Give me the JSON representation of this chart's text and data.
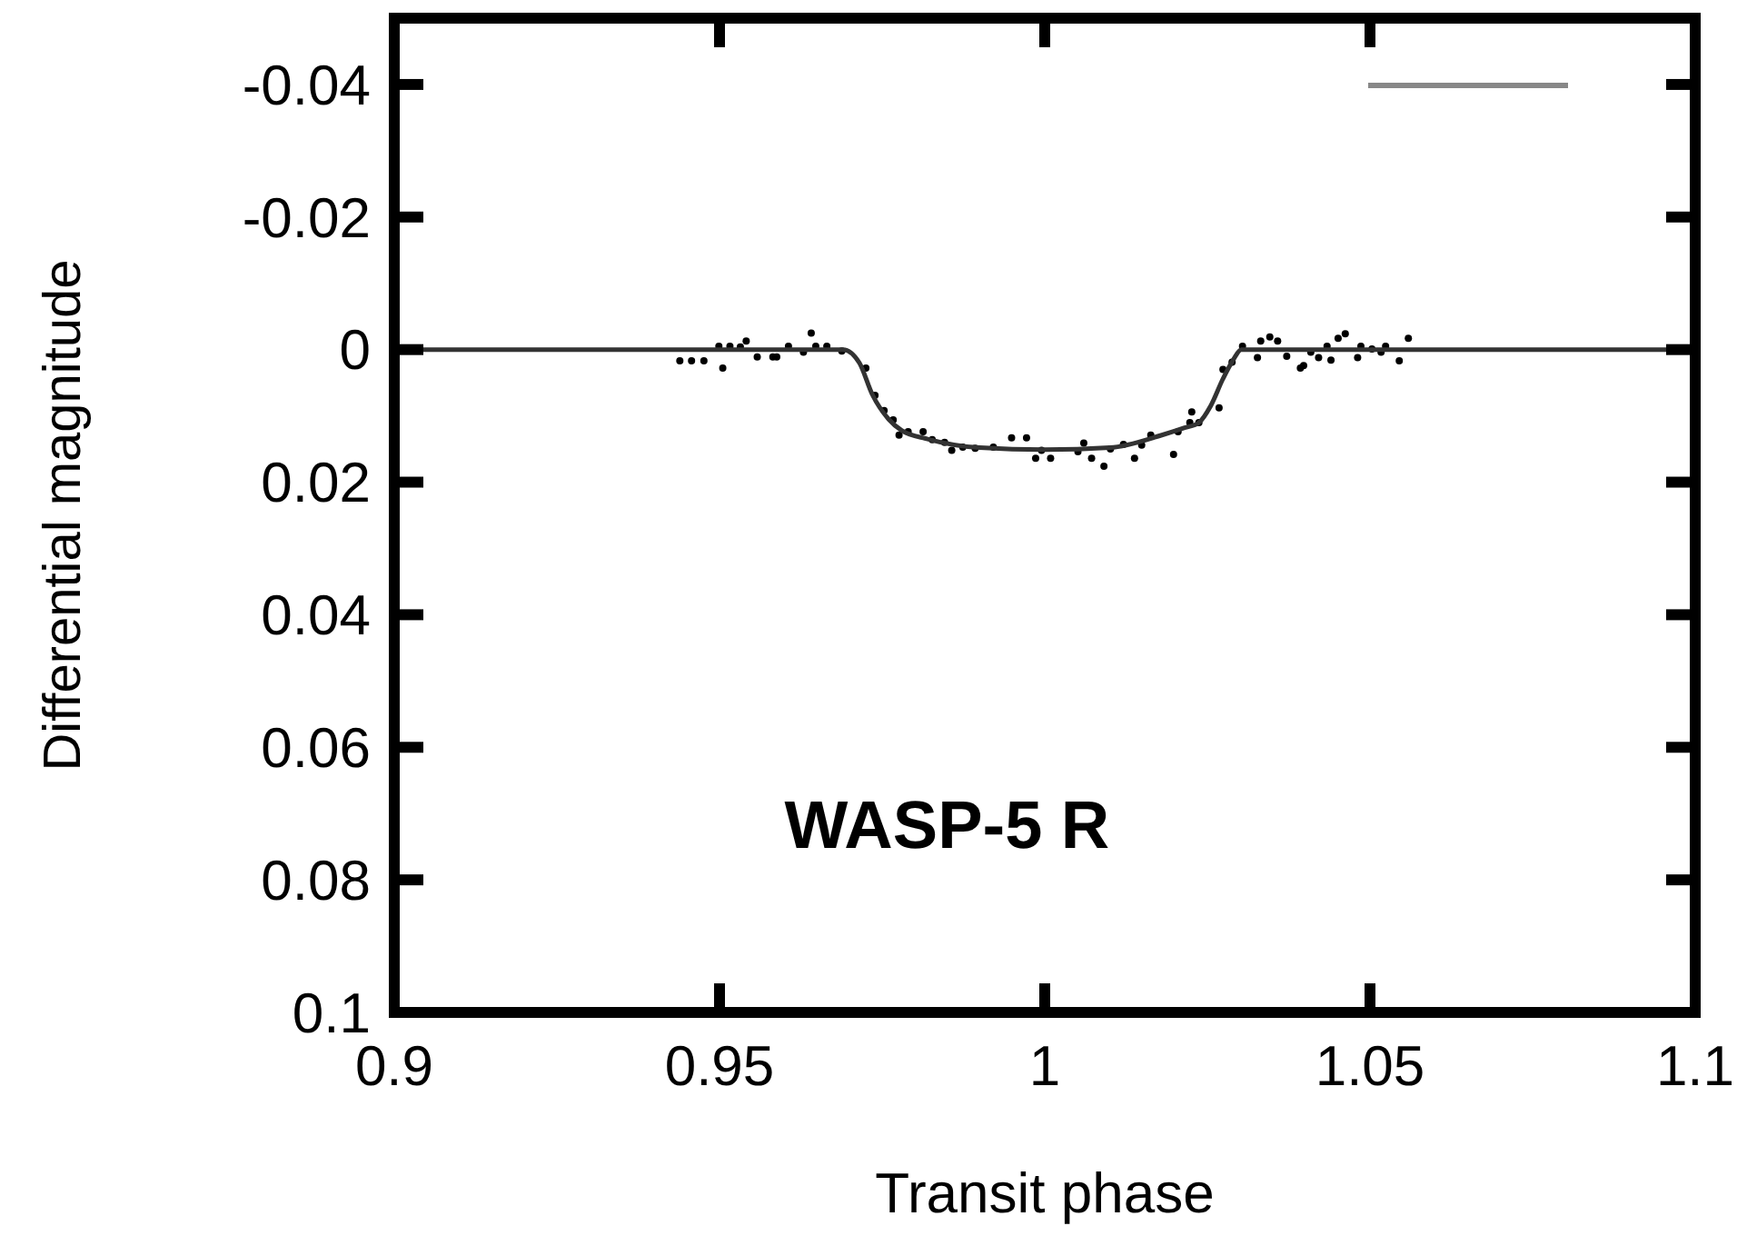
{
  "chart_data": {
    "type": "scatter",
    "xlabel": "Transit phase",
    "ylabel": "Differential magnitude",
    "annotations": [
      "WASP-5 R"
    ],
    "xlim": [
      0.9,
      1.1
    ],
    "xticks": [
      0.9,
      0.95,
      1,
      1.05,
      1.1
    ],
    "ylim": [
      0.1,
      -0.05
    ],
    "yticks": [
      -0.04,
      -0.02,
      0,
      0.02,
      0.04,
      0.06,
      0.08,
      0.1
    ],
    "grid": false,
    "series": [
      {
        "marker": "circle",
        "color": "#000000",
        "x": [
          0.9439,
          0.9457,
          0.9476,
          0.9499,
          0.9505,
          0.9516,
          0.9532,
          0.9541,
          0.9558,
          0.9582,
          0.9588,
          0.9606,
          0.9629,
          0.9641,
          0.9648,
          0.9665,
          0.9688,
          0.9725,
          0.9739,
          0.9753,
          0.9767,
          0.9776,
          0.979,
          0.9813,
          0.9827,
          0.9846,
          0.9857,
          0.9874,
          0.9893,
          0.9921,
          0.9949,
          0.9972,
          0.9986,
          0.9995,
          1.0009,
          1.0051,
          1.006,
          1.0072,
          1.0091,
          1.0101,
          1.0121,
          1.0138,
          1.0149,
          1.0163,
          1.0198,
          1.0205,
          1.0226,
          1.0223,
          1.0237,
          1.0268,
          1.0274,
          1.0288,
          1.0304,
          1.0327,
          1.0332,
          1.0346,
          1.0358,
          1.0372,
          1.0393,
          1.0398,
          1.0409,
          1.0421,
          1.0434,
          1.044,
          1.0451,
          1.0462,
          1.0481,
          1.0486,
          1.0503,
          1.0517,
          1.0524,
          1.0545,
          1.0559
        ],
        "values": [
          0.0017,
          0.0017,
          0.0017,
          -0.0005,
          0.0028,
          -0.0005,
          -0.0004,
          -0.0013,
          0.0011,
          0.0011,
          0.0011,
          -0.0005,
          0.0004,
          -0.0025,
          -0.0005,
          -0.0005,
          0.0002,
          0.0028,
          0.0069,
          0.0092,
          0.0106,
          0.0129,
          0.0124,
          0.0124,
          0.0136,
          0.014,
          0.0152,
          0.0147,
          0.0149,
          0.0147,
          0.0133,
          0.0133,
          0.0164,
          0.0152,
          0.0164,
          0.0154,
          0.0141,
          0.0164,
          0.0176,
          0.015,
          0.0143,
          0.0164,
          0.0144,
          0.0129,
          0.0158,
          0.0124,
          0.0094,
          0.011,
          0.011,
          0.0088,
          0.003,
          0.0019,
          -0.0005,
          0.0012,
          -0.0013,
          -0.0019,
          -0.0013,
          0.001,
          0.0028,
          0.0024,
          0.0004,
          0.0012,
          -0.0005,
          0.0016,
          -0.0017,
          -0.0024,
          0.0012,
          -0.0005,
          -0.0001,
          0.0004,
          -0.0005,
          0.0017,
          -0.0017
        ]
      },
      {
        "type": "line",
        "line_style": "solid",
        "color": "#333333",
        "x": [
          0.9,
          0.969,
          0.9715,
          0.9735,
          0.976,
          0.978,
          0.982,
          0.99,
          1.0,
          1.01,
          1.018,
          1.0215,
          1.0237,
          1.0255,
          1.0274,
          1.029,
          1.0302,
          1.1
        ],
        "values": [
          0,
          0,
          0.002,
          0.0068,
          0.0105,
          0.0122,
          0.0135,
          0.0148,
          0.0151,
          0.0148,
          0.0129,
          0.0118,
          0.011,
          0.0085,
          0.0044,
          0.0015,
          0,
          0
        ]
      }
    ]
  }
}
